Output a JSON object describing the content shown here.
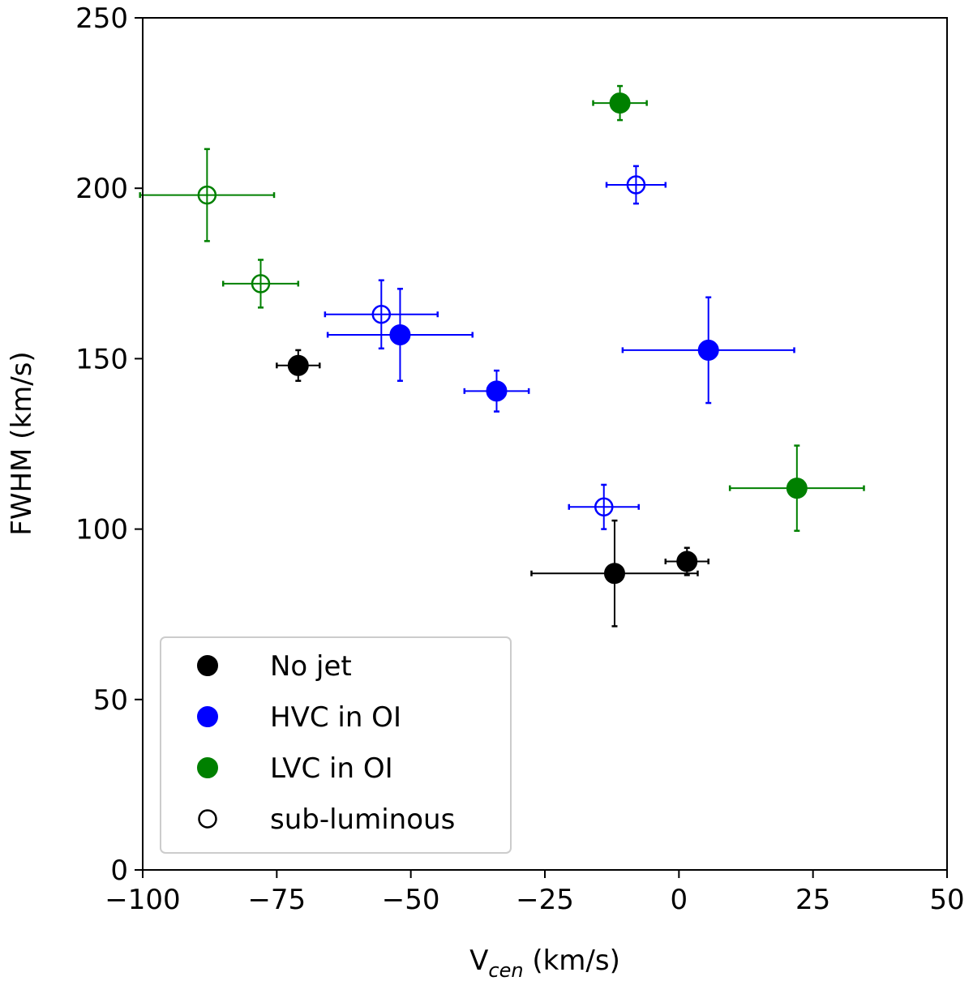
{
  "chart_data": {
    "type": "scatter",
    "title": "",
    "xlabel_main": "V",
    "xlabel_sub": "cen",
    "xlabel_unit": " (km/s)",
    "ylabel": "FWHM (km/s)",
    "xlim": [
      -100,
      50
    ],
    "ylim": [
      0,
      250
    ],
    "xticks": [
      -100,
      -75,
      -50,
      -25,
      0,
      25,
      50
    ],
    "xtick_labels": [
      "−100",
      "−75",
      "−50",
      "−25",
      "0",
      "25",
      "50"
    ],
    "yticks": [
      0,
      50,
      100,
      150,
      200,
      250
    ],
    "ytick_labels": [
      "0",
      "50",
      "100",
      "150",
      "200",
      "250"
    ],
    "grid": false,
    "legend_position": "lower-left",
    "series": [
      {
        "name": "No jet",
        "color": "#000000",
        "points": [
          {
            "x": -71,
            "y": 148,
            "xerr": 4,
            "yerr": 4.5,
            "filled": true
          },
          {
            "x": -12,
            "y": 87,
            "xerr": 15.5,
            "yerr": 15.5,
            "filled": true
          },
          {
            "x": 1.5,
            "y": 90.5,
            "xerr": 4,
            "yerr": 4,
            "filled": true
          }
        ]
      },
      {
        "name": "HVC in OI",
        "color": "#0000ff",
        "points": [
          {
            "x": -52,
            "y": 157,
            "xerr": 13.5,
            "yerr": 13.5,
            "filled": true
          },
          {
            "x": -34,
            "y": 140.5,
            "xerr": 6,
            "yerr": 6,
            "filled": true
          },
          {
            "x": 5.5,
            "y": 152.5,
            "xerr": 16,
            "yerr": 15.5,
            "filled": true
          },
          {
            "x": -8,
            "y": 201,
            "xerr": 5.5,
            "yerr": 5.5,
            "filled": false
          },
          {
            "x": -55.5,
            "y": 163,
            "xerr": 10.5,
            "yerr": 10,
            "filled": false
          },
          {
            "x": -14,
            "y": 106.5,
            "xerr": 6.5,
            "yerr": 6.5,
            "filled": false
          }
        ]
      },
      {
        "name": "LVC in OI",
        "color": "#008000",
        "points": [
          {
            "x": -11,
            "y": 225,
            "xerr": 5,
            "yerr": 5,
            "filled": true
          },
          {
            "x": 22,
            "y": 112,
            "xerr": 12.5,
            "yerr": 12.5,
            "filled": true
          },
          {
            "x": -88,
            "y": 198,
            "xerr": 12.5,
            "yerr": 13.5,
            "filled": false
          },
          {
            "x": -78,
            "y": 172,
            "xerr": 7,
            "yerr": 7,
            "filled": false
          }
        ]
      }
    ],
    "legend": [
      {
        "label": "No jet",
        "color": "#000000",
        "filled": true
      },
      {
        "label": "HVC in OI",
        "color": "#0000ff",
        "filled": true
      },
      {
        "label": "LVC in OI",
        "color": "#008000",
        "filled": true
      },
      {
        "label": "sub-luminous",
        "color": "#000000",
        "filled": false
      }
    ]
  }
}
